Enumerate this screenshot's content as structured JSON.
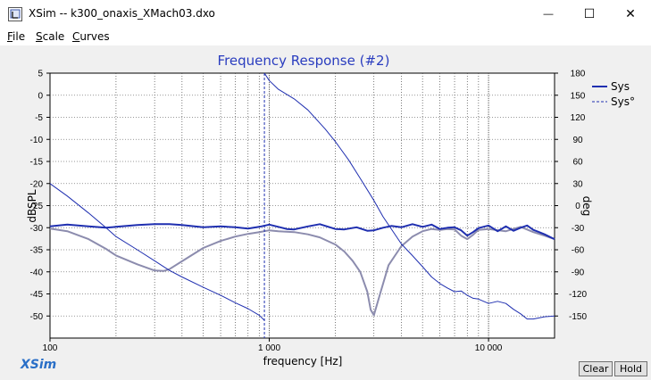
{
  "window": {
    "title": "XSim -- k300_onaxis_XMach03.dxo",
    "minimize_glyph": "—",
    "maximize_glyph": "☐",
    "close_glyph": "✕"
  },
  "menu": [
    {
      "accel": "F",
      "rest": "ile"
    },
    {
      "accel": "S",
      "rest": "cale"
    },
    {
      "accel": "C",
      "rest": "urves"
    }
  ],
  "brand": "XSim",
  "buttons": {
    "clear": "Clear",
    "hold": "Hold"
  },
  "icons": {
    "app": "xsim-app-icon"
  },
  "chart_data": {
    "type": "line",
    "title": "Frequency Response (#2)",
    "xlabel": "frequency [Hz]",
    "ylabel": "dBSPL",
    "y2label": "deg",
    "xscale": "log",
    "xlim": [
      100,
      20000
    ],
    "ylim": [
      -55,
      5
    ],
    "y2lim": [
      -180,
      180
    ],
    "x_ticks": [
      100,
      1000,
      10000
    ],
    "x_tick_labels": [
      "100",
      "1 000",
      "10 000"
    ],
    "y_ticks": [
      5,
      0,
      -5,
      -10,
      -15,
      -20,
      -25,
      -30,
      -35,
      -40,
      -45,
      -50
    ],
    "y2_ticks": [
      180,
      150,
      120,
      90,
      60,
      30,
      0,
      -30,
      -60,
      -90,
      -120,
      -150
    ],
    "grid": true,
    "legend": "right",
    "marker": {
      "x": 950
    },
    "series": [
      {
        "name": "Sys",
        "axis": "left",
        "color": "#1f2fb0",
        "x": [
          100,
          120,
          150,
          180,
          200,
          250,
          300,
          350,
          400,
          500,
          600,
          700,
          800,
          900,
          1000,
          1100,
          1200,
          1300,
          1500,
          1700,
          2000,
          2200,
          2500,
          2800,
          3000,
          3300,
          3600,
          4000,
          4500,
          5000,
          5500,
          6000,
          6500,
          7000,
          7500,
          8000,
          8500,
          9000,
          10000,
          11000,
          12000,
          13000,
          14000,
          15000,
          16000,
          17000,
          18000,
          20000
        ],
        "y": [
          -29.7,
          -29.3,
          -29.7,
          -30.0,
          -29.8,
          -29.4,
          -29.2,
          -29.2,
          -29.4,
          -29.9,
          -29.7,
          -29.9,
          -30.2,
          -29.8,
          -29.3,
          -29.8,
          -30.3,
          -30.4,
          -29.7,
          -29.2,
          -30.3,
          -30.4,
          -29.9,
          -30.7,
          -30.6,
          -30.0,
          -29.6,
          -29.9,
          -29.2,
          -29.8,
          -29.3,
          -30.3,
          -30.0,
          -29.9,
          -30.6,
          -31.8,
          -31.0,
          -30.1,
          -29.5,
          -30.8,
          -29.7,
          -30.7,
          -30.0,
          -29.5,
          -30.5,
          -31.0,
          -31.5,
          -32.6
        ]
      },
      {
        "name": "",
        "axis": "left",
        "color": "#8c8cae",
        "x": [
          100,
          120,
          150,
          180,
          200,
          250,
          300,
          330,
          350,
          400,
          500,
          600,
          700,
          800,
          900,
          1000,
          1100,
          1300,
          1500,
          1700,
          2000,
          2200,
          2400,
          2600,
          2800,
          2900,
          3000,
          3200,
          3500,
          4000,
          4500,
          5000,
          5500,
          6000,
          6500,
          7000,
          7500,
          8000,
          8500,
          9000,
          10000,
          12000,
          14000,
          16000,
          18000,
          20000
        ],
        "y": [
          -30.2,
          -30.8,
          -32.6,
          -34.8,
          -36.3,
          -38.3,
          -39.7,
          -39.8,
          -39.4,
          -37.6,
          -34.6,
          -33.0,
          -32.0,
          -31.4,
          -31.0,
          -30.6,
          -30.8,
          -31.0,
          -31.5,
          -32.2,
          -33.8,
          -35.4,
          -37.5,
          -40.0,
          -44.5,
          -48.6,
          -49.8,
          -45.0,
          -38.5,
          -34.2,
          -32.0,
          -30.8,
          -30.3,
          -30.5,
          -30.3,
          -30.4,
          -31.8,
          -32.6,
          -31.6,
          -30.5,
          -30.3,
          -30.8,
          -29.8,
          -31.0,
          -31.8,
          -32.6
        ]
      },
      {
        "name": "Sys°",
        "axis": "right",
        "color": "#1f2fb0",
        "dashed": true,
        "x": [
          950,
          1000,
          1100,
          1300,
          1500,
          1800,
          2000,
          2300,
          2600,
          3000,
          3300,
          3700,
          4000,
          4500,
          5000,
          5500,
          6000,
          6500,
          7000,
          7500,
          8000,
          8500,
          9000,
          10000,
          11000,
          12000,
          13000,
          14000,
          15000,
          16000,
          18000,
          20000
        ],
        "y": [
          180,
          170,
          158,
          145,
          130,
          104,
          87,
          62,
          37,
          7,
          -15,
          -37,
          -52,
          -68,
          -83,
          -97,
          -106,
          -112,
          -117,
          -116,
          -122,
          -126,
          -127,
          -133,
          -130,
          -133,
          -141,
          -147,
          -154,
          -154,
          -151,
          -150
        ]
      },
      {
        "name": "",
        "axis": "right",
        "color": "#1f2fb0",
        "x": [
          100,
          120,
          150,
          180,
          200,
          250,
          300,
          350,
          400,
          500,
          600,
          700,
          800,
          900,
          950
        ],
        "y": [
          30,
          13,
          -10,
          -30,
          -42,
          -60,
          -75,
          -88,
          -97,
          -111,
          -122,
          -132,
          -140,
          -149,
          -156
        ]
      }
    ]
  }
}
